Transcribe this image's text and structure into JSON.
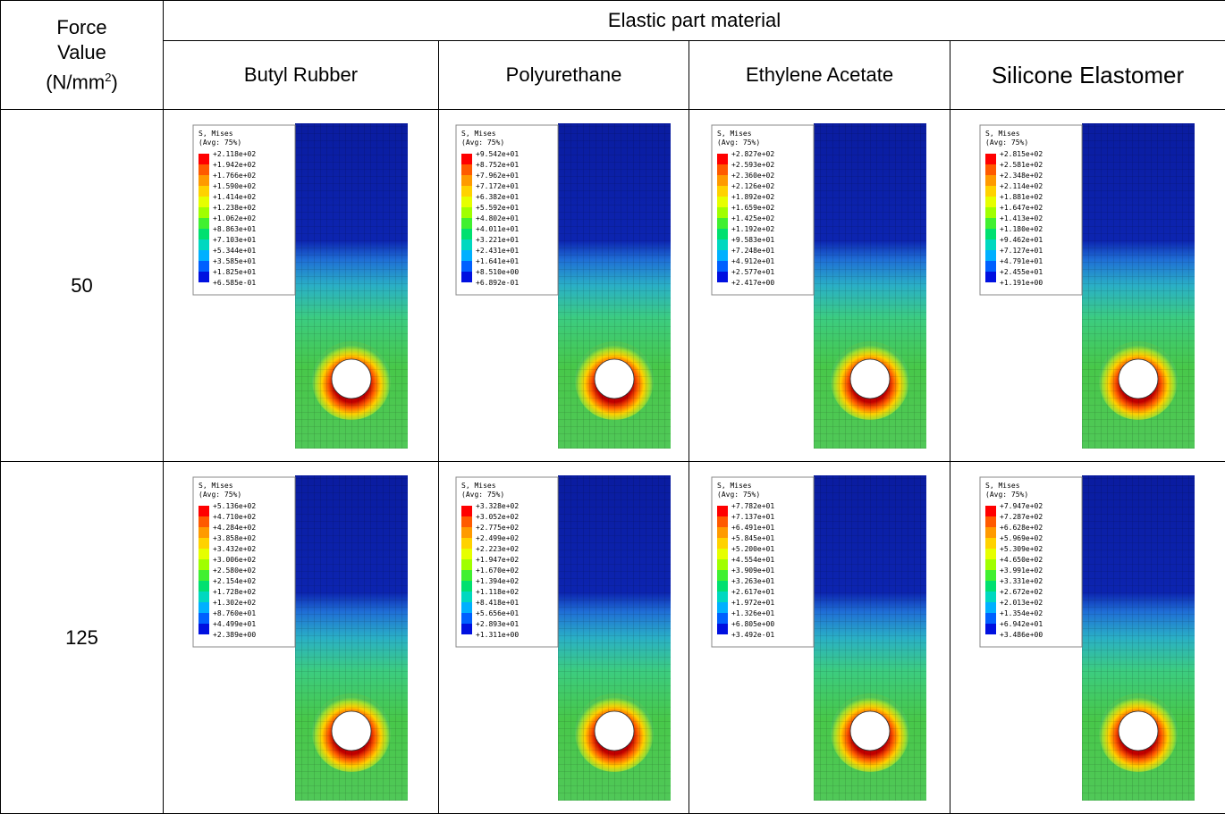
{
  "header": {
    "force": [
      "Force",
      "Value"
    ],
    "unit": {
      "text": "(N/mm",
      "sup": "2",
      "close": ")"
    },
    "group": "Elastic part material",
    "materials": [
      "Butyl Rubber",
      "Polyurethane",
      "Ethylene Acetate",
      "Silicone Elastomer"
    ]
  },
  "contour": {
    "title": "S, Mises",
    "avg": "(Avg: 75%)"
  },
  "rows": [
    {
      "force": "50",
      "legends": [
        [
          "+2.118e+02",
          "+1.942e+02",
          "+1.766e+02",
          "+1.590e+02",
          "+1.414e+02",
          "+1.238e+02",
          "+1.062e+02",
          "+8.863e+01",
          "+7.103e+01",
          "+5.344e+01",
          "+3.585e+01",
          "+1.825e+01",
          "+6.585e-01"
        ],
        [
          "+9.542e+01",
          "+8.752e+01",
          "+7.962e+01",
          "+7.172e+01",
          "+6.382e+01",
          "+5.592e+01",
          "+4.802e+01",
          "+4.011e+01",
          "+3.221e+01",
          "+2.431e+01",
          "+1.641e+01",
          "+8.510e+00",
          "+6.892e-01"
        ],
        [
          "+2.827e+02",
          "+2.593e+02",
          "+2.360e+02",
          "+2.126e+02",
          "+1.892e+02",
          "+1.659e+02",
          "+1.425e+02",
          "+1.192e+02",
          "+9.583e+01",
          "+7.248e+01",
          "+4.912e+01",
          "+2.577e+01",
          "+2.417e+00"
        ],
        [
          "+2.815e+02",
          "+2.581e+02",
          "+2.348e+02",
          "+2.114e+02",
          "+1.881e+02",
          "+1.647e+02",
          "+1.413e+02",
          "+1.180e+02",
          "+9.462e+01",
          "+7.127e+01",
          "+4.791e+01",
          "+2.455e+01",
          "+1.191e+00"
        ]
      ]
    },
    {
      "force": "125",
      "legends": [
        [
          "+5.136e+02",
          "+4.710e+02",
          "+4.284e+02",
          "+3.858e+02",
          "+3.432e+02",
          "+3.006e+02",
          "+2.580e+02",
          "+2.154e+02",
          "+1.728e+02",
          "+1.302e+02",
          "+8.760e+01",
          "+4.499e+01",
          "+2.389e+00"
        ],
        [
          "+3.328e+02",
          "+3.052e+02",
          "+2.775e+02",
          "+2.499e+02",
          "+2.223e+02",
          "+1.947e+02",
          "+1.670e+02",
          "+1.394e+02",
          "+1.118e+02",
          "+8.418e+01",
          "+5.656e+01",
          "+2.893e+01",
          "+1.311e+00"
        ],
        [
          "+7.782e+01",
          "+7.137e+01",
          "+6.491e+01",
          "+5.845e+01",
          "+5.200e+01",
          "+4.554e+01",
          "+3.909e+01",
          "+3.263e+01",
          "+2.617e+01",
          "+1.972e+01",
          "+1.326e+01",
          "+6.805e+00",
          "+3.492e-01"
        ],
        [
          "+7.947e+02",
          "+7.287e+02",
          "+6.628e+02",
          "+5.969e+02",
          "+5.309e+02",
          "+4.650e+02",
          "+3.991e+02",
          "+3.331e+02",
          "+2.672e+02",
          "+2.013e+02",
          "+1.354e+02",
          "+6.942e+01",
          "+3.486e+00"
        ]
      ]
    }
  ]
}
